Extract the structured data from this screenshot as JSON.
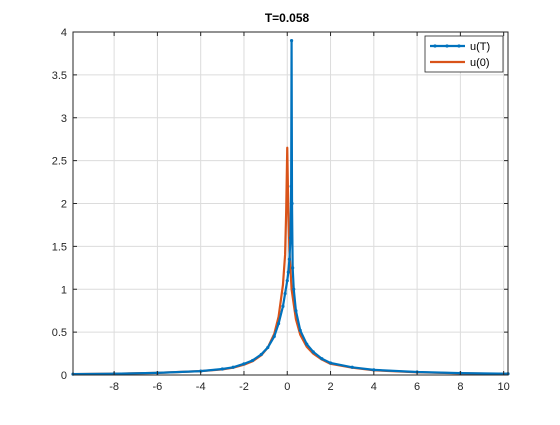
{
  "chart_data": {
    "type": "line",
    "title": "T=0.058",
    "xlabel": "",
    "ylabel": "",
    "xlim": [
      -9.9,
      10.2
    ],
    "ylim": [
      0,
      4
    ],
    "xticks": [
      -8,
      -6,
      -4,
      -2,
      0,
      2,
      4,
      6,
      8,
      10
    ],
    "xtick_labels": [
      "-8",
      "-6",
      "-4",
      "-2",
      "0",
      "2",
      "4",
      "6",
      "8",
      "10"
    ],
    "yticks": [
      0,
      0.5,
      1,
      1.5,
      2,
      2.5,
      3,
      3.5,
      4
    ],
    "ytick_labels": [
      "0",
      "0.5",
      "1",
      "1.5",
      "2",
      "2.5",
      "3",
      "3.5",
      "4"
    ],
    "grid": true,
    "legend_position": "top-right",
    "series": [
      {
        "name": "u(T)",
        "color": "#0072bd",
        "marker": "dot",
        "x": [
          -9.9,
          -8,
          -6,
          -4,
          -3,
          -2.5,
          -2,
          -1.6,
          -1.2,
          -0.9,
          -0.6,
          -0.4,
          -0.2,
          -0.1,
          0.0,
          0.05,
          0.1,
          0.15,
          0.18,
          0.2,
          0.22,
          0.25,
          0.3,
          0.4,
          0.6,
          0.9,
          1.2,
          1.6,
          2,
          3,
          4,
          6,
          8,
          10.2
        ],
        "y": [
          0.01,
          0.015,
          0.025,
          0.045,
          0.07,
          0.09,
          0.13,
          0.17,
          0.24,
          0.32,
          0.45,
          0.6,
          0.8,
          0.95,
          1.1,
          1.2,
          1.35,
          1.6,
          2.2,
          3.9,
          2.0,
          1.25,
          1.0,
          0.75,
          0.52,
          0.36,
          0.27,
          0.19,
          0.14,
          0.09,
          0.06,
          0.035,
          0.022,
          0.015
        ]
      },
      {
        "name": "u(0)",
        "color": "#d95319",
        "marker": "none",
        "x": [
          -9.9,
          -8,
          -6,
          -4,
          -3,
          -2.5,
          -2,
          -1.6,
          -1.2,
          -0.9,
          -0.6,
          -0.4,
          -0.2,
          -0.1,
          -0.05,
          0.0,
          0.05,
          0.1,
          0.2,
          0.4,
          0.6,
          0.9,
          1.2,
          1.6,
          2,
          3,
          4,
          6,
          8,
          10.2
        ],
        "y": [
          0.01,
          0.015,
          0.025,
          0.045,
          0.065,
          0.085,
          0.12,
          0.16,
          0.23,
          0.32,
          0.48,
          0.68,
          1.05,
          1.4,
          1.9,
          2.65,
          1.9,
          1.45,
          1.0,
          0.65,
          0.47,
          0.33,
          0.25,
          0.18,
          0.13,
          0.085,
          0.055,
          0.032,
          0.02,
          0.013
        ]
      }
    ]
  }
}
